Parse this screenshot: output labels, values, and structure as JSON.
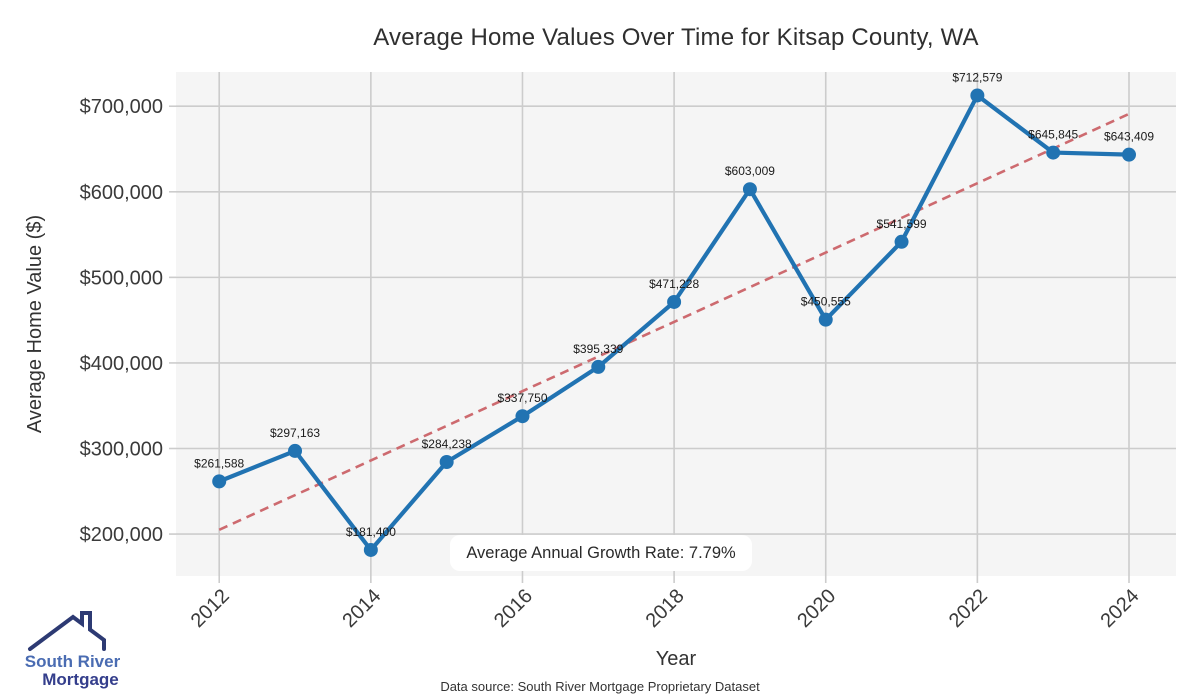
{
  "chart_data": {
    "type": "line",
    "title": "Average Home Values Over Time for Kitsap County, WA",
    "xlabel": "Year",
    "ylabel": "Average Home Value ($)",
    "x": [
      2012,
      2013,
      2014,
      2015,
      2016,
      2017,
      2018,
      2019,
      2020,
      2021,
      2022,
      2023,
      2024
    ],
    "series": [
      {
        "name": "Average Home Value",
        "values": [
          261588,
          297163,
          181400,
          284238,
          337750,
          395339,
          471228,
          603009,
          450555,
          541599,
          712579,
          645845,
          643409
        ]
      }
    ],
    "point_labels": [
      "$261,588",
      "$297,163",
      "$181,400",
      "$284,238",
      "$337,750",
      "$395,339",
      "$471,228",
      "$603,009",
      "$450,555",
      "$541,599",
      "$712,579",
      "$645,845",
      "$643,409"
    ],
    "xticks": [
      2012,
      2014,
      2016,
      2018,
      2020,
      2022,
      2024
    ],
    "yticks": [
      200000,
      300000,
      400000,
      500000,
      600000,
      700000
    ],
    "ytick_labels": [
      "$200,000",
      "$300,000",
      "$400,000",
      "$500,000",
      "$600,000",
      "$700,000"
    ],
    "xlim": [
      2011.43,
      2024.62
    ],
    "ylim": [
      151000,
      740000
    ],
    "grid": true,
    "legend": "none",
    "trendline": {
      "style": "dashed",
      "start_value": 205000,
      "end_value": 691000
    }
  },
  "annotation": {
    "text": "Average Annual Growth Rate: 7.79%"
  },
  "footnote": "Data source: South River Mortgage Proprietary Dataset",
  "logo": {
    "line1": "South River",
    "line2": "Mortgage"
  },
  "colors": {
    "line": "#2173b2",
    "marker": "#2173b2",
    "trend": "#cd6a6f",
    "plot_bg": "#f5f5f5",
    "grid": "#cccccc",
    "tick_text": "#3a3a3a",
    "label_text": "#1a1a1a",
    "logo_navy": "#2d3a73"
  }
}
